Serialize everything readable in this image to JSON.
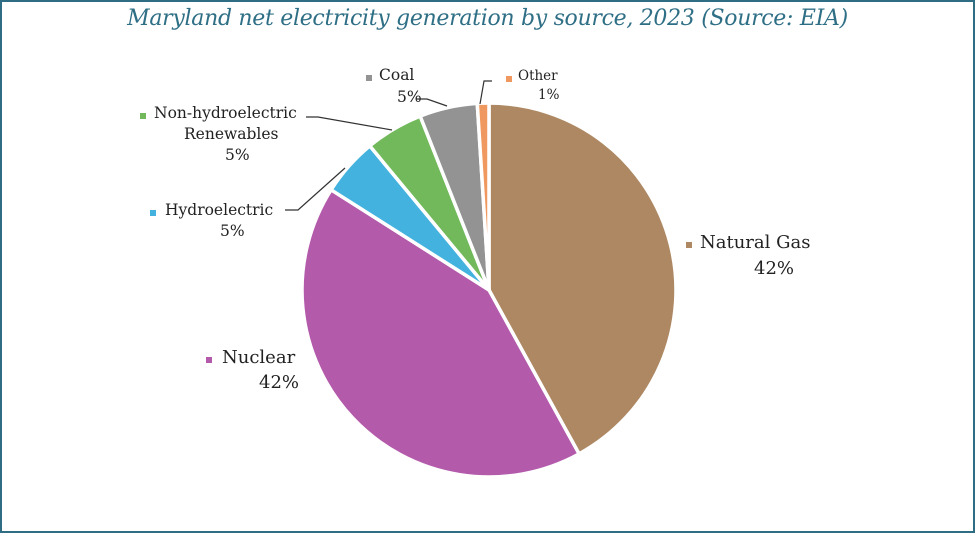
{
  "chart_data": {
    "type": "pie",
    "title": "Maryland net electricity generation by source, 2023 (Source: EIA)",
    "start_angle": "12 o'clock",
    "direction": "clockwise",
    "legend": "none (data labels with category name and percent)",
    "slices": [
      {
        "name": "Natural Gas",
        "value": 42,
        "label": "42%",
        "color": "#ad8862"
      },
      {
        "name": "Nuclear",
        "value": 42,
        "label": "42%",
        "color": "#b35aab"
      },
      {
        "name": "Hydroelectric",
        "value": 5,
        "label": "5%",
        "color": "#43b2de"
      },
      {
        "name": "Non-hydroelectric Renewables",
        "label_lines": [
          "Non-hydroelectric",
          "Renewables"
        ],
        "value": 5,
        "label": "5%",
        "color": "#72b95b"
      },
      {
        "name": "Coal",
        "value": 5,
        "label": "5%",
        "color": "#939393"
      },
      {
        "name": "Other",
        "value": 1,
        "label": "1%",
        "color": "#ef9960"
      }
    ]
  },
  "colors": {
    "title": "#2f6f86",
    "frame": "#2f6d84",
    "leader": "#333333"
  }
}
